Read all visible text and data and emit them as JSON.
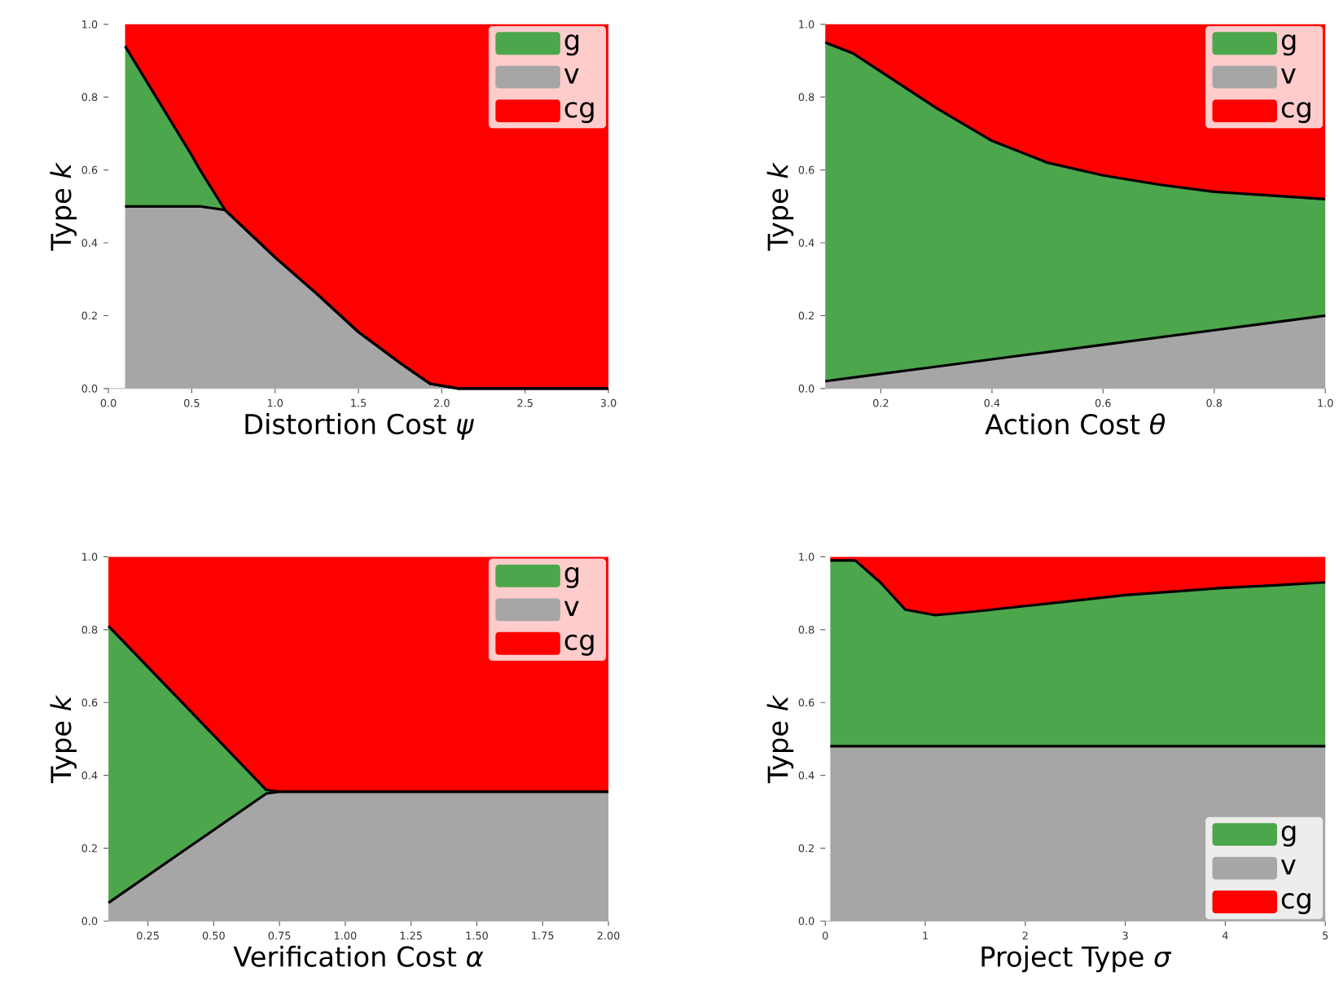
{
  "chart_data": [
    {
      "type": "area",
      "stacked": true,
      "xlabel": "Distortion Cost *ψ*",
      "ylabel": "Type *k*",
      "legend": "top right",
      "xlim": [
        0,
        3
      ],
      "ylim": [
        0,
        1
      ],
      "xticks": [
        {
          "value": 0,
          "label": "0.0"
        },
        {
          "value": 0.5,
          "label": "0.5"
        },
        {
          "value": 1,
          "label": "1.0"
        },
        {
          "value": 1.5,
          "label": "1.5"
        },
        {
          "value": 2,
          "label": "2.0"
        },
        {
          "value": 2.5,
          "label": "2.5"
        },
        {
          "value": 3,
          "label": "3.0"
        }
      ],
      "yticks": [
        {
          "value": 0,
          "label": "0.0"
        },
        {
          "value": 0.2,
          "label": "0.2"
        },
        {
          "value": 0.4,
          "label": "0.4"
        },
        {
          "value": 0.6,
          "label": "0.6"
        },
        {
          "value": 0.8,
          "label": "0.8"
        },
        {
          "value": 1,
          "label": "1.0"
        }
      ],
      "x": [
        0.1,
        0.3,
        0.5,
        0.55,
        0.7,
        1.0,
        1.25,
        1.5,
        1.75,
        1.93,
        2.1,
        2.5,
        3.0
      ],
      "series": [
        {
          "name": "v",
          "color": "#a6a6a6",
          "values": [
            0.5,
            0.5,
            0.5,
            0.5,
            0.49,
            0.36,
            0.26,
            0.155,
            0.07,
            0.013,
            0,
            0,
            0
          ]
        },
        {
          "name": "g",
          "color": "#4ca64c",
          "values": [
            0.44,
            0.29,
            0.14,
            0.1,
            0,
            0,
            0,
            0,
            0,
            0,
            0,
            0,
            0
          ]
        },
        {
          "name": "cg",
          "color": "#ff0000",
          "values": [
            0.06,
            0.21,
            0.36,
            0.4,
            0.51,
            0.64,
            0.74,
            0.845,
            0.93,
            0.987,
            1,
            1,
            1
          ]
        }
      ]
    },
    {
      "type": "area",
      "stacked": true,
      "xlabel": "Action Cost *θ*",
      "ylabel": "Type *k*",
      "legend": "top right",
      "xlim": [
        0.1,
        1.0
      ],
      "ylim": [
        0,
        1
      ],
      "xticks": [
        0.2,
        0.4,
        0.6,
        0.8,
        {
          "value": 1,
          "label": "1.0"
        }
      ],
      "yticks": [
        {
          "value": 0,
          "label": "0.0"
        },
        {
          "value": 0.2,
          "label": "0.2"
        },
        {
          "value": 0.4,
          "label": "0.4"
        },
        {
          "value": 0.6,
          "label": "0.6"
        },
        {
          "value": 0.8,
          "label": "0.8"
        },
        {
          "value": 1,
          "label": "1.0"
        }
      ],
      "x": [
        0.1,
        0.15,
        0.2,
        0.3,
        0.4,
        0.5,
        0.6,
        0.7,
        0.8,
        0.9,
        1.0
      ],
      "series": [
        {
          "name": "v",
          "color": "#a6a6a6",
          "values": [
            0.02,
            0.03,
            0.04,
            0.06,
            0.08,
            0.1,
            0.12,
            0.14,
            0.16,
            0.18,
            0.2
          ]
        },
        {
          "name": "g",
          "color": "#4ca64c",
          "values": [
            0.93,
            0.89,
            0.83,
            0.71,
            0.6,
            0.52,
            0.465,
            0.42,
            0.38,
            0.35,
            0.32
          ]
        },
        {
          "name": "cg",
          "color": "#ff0000",
          "values": [
            0.05,
            0.08,
            0.13,
            0.23,
            0.32,
            0.38,
            0.415,
            0.44,
            0.46,
            0.47,
            0.48
          ]
        }
      ]
    },
    {
      "type": "area",
      "stacked": true,
      "xlabel": "Verification  Cost *α*",
      "ylabel": "Type *k*",
      "legend": "top right",
      "xlim": [
        0.1,
        2.0
      ],
      "ylim": [
        0,
        1
      ],
      "xticks": [
        0.25,
        {
          "value": 0.5,
          "label": "0.50"
        },
        0.75,
        {
          "value": 1,
          "label": "1.00"
        },
        1.25,
        {
          "value": 1.5,
          "label": "1.50"
        },
        1.75,
        {
          "value": 2,
          "label": "2.00"
        }
      ],
      "yticks": [
        {
          "value": 0,
          "label": "0.0"
        },
        {
          "value": 0.2,
          "label": "0.2"
        },
        {
          "value": 0.4,
          "label": "0.4"
        },
        {
          "value": 0.6,
          "label": "0.6"
        },
        {
          "value": 0.8,
          "label": "0.8"
        },
        {
          "value": 1,
          "label": "1.0"
        }
      ],
      "x": [
        0.1,
        0.4,
        0.7,
        0.75,
        1.0,
        1.5,
        2.0
      ],
      "series": [
        {
          "name": "v",
          "color": "#a6a6a6",
          "values": [
            0.05,
            0.2,
            0.35,
            0.355,
            0.355,
            0.355,
            0.355
          ]
        },
        {
          "name": "g",
          "color": "#4ca64c",
          "values": [
            0.76,
            0.385,
            0.01,
            0,
            0,
            0,
            0
          ]
        },
        {
          "name": "cg",
          "color": "#ff0000",
          "values": [
            0.19,
            0.415,
            0.64,
            0.645,
            0.645,
            0.645,
            0.645
          ]
        }
      ]
    },
    {
      "type": "area",
      "stacked": true,
      "xlabel": "Project Type *σ*",
      "ylabel": "Type *k*",
      "legend": "bottom right",
      "xlim": [
        0,
        5
      ],
      "ylim": [
        0,
        1
      ],
      "xticks": [
        0,
        1,
        2,
        3,
        4,
        5
      ],
      "yticks": [
        {
          "value": 0,
          "label": "0.0"
        },
        {
          "value": 0.2,
          "label": "0.2"
        },
        {
          "value": 0.4,
          "label": "0.4"
        },
        {
          "value": 0.6,
          "label": "0.6"
        },
        {
          "value": 0.8,
          "label": "0.8"
        },
        {
          "value": 1,
          "label": "1.0"
        }
      ],
      "x": [
        0.05,
        0.3,
        0.55,
        0.8,
        1.1,
        1.5,
        2,
        2.5,
        3,
        3.5,
        4,
        4.5,
        5
      ],
      "series": [
        {
          "name": "v",
          "color": "#a6a6a6",
          "values": [
            0.48,
            0.48,
            0.48,
            0.48,
            0.48,
            0.48,
            0.48,
            0.48,
            0.48,
            0.48,
            0.48,
            0.48,
            0.48
          ]
        },
        {
          "name": "g",
          "color": "#4ca64c",
          "values": [
            0.51,
            0.51,
            0.45,
            0.375,
            0.36,
            0.37,
            0.385,
            0.4,
            0.415,
            0.425,
            0.435,
            0.442,
            0.45
          ]
        },
        {
          "name": "cg",
          "color": "#ff0000",
          "values": [
            0.01,
            0.01,
            0.07,
            0.145,
            0.16,
            0.15,
            0.135,
            0.12,
            0.105,
            0.095,
            0.085,
            0.078,
            0.07
          ]
        }
      ]
    }
  ]
}
